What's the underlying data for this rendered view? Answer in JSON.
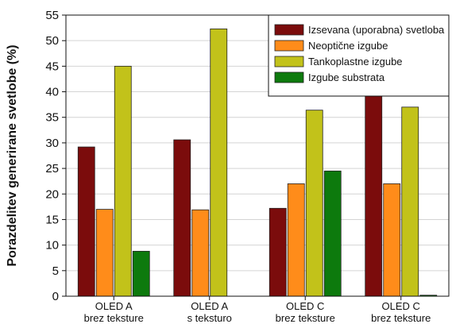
{
  "chart_data": {
    "type": "bar",
    "ylabel": "Porazdelitev generirane svetlobe (%)",
    "xlabel": "",
    "ylim": [
      0,
      55
    ],
    "yticks": [
      0,
      5,
      10,
      15,
      20,
      25,
      30,
      35,
      40,
      45,
      50,
      55
    ],
    "grid": "horizontal",
    "legend_position": "top-right",
    "categories": [
      [
        "OLED A",
        "brez teksture"
      ],
      [
        "OLED A",
        "s teksturo"
      ],
      [
        "OLED C",
        "brez teksture"
      ],
      [
        "OLED C",
        "brez teksture"
      ]
    ],
    "series": [
      {
        "name": "Izsevana (uporabna) svetloba",
        "color": "#7b0c0c",
        "values": [
          29.2,
          30.6,
          17.2,
          40.8
        ]
      },
      {
        "name": "Neoptične izgube",
        "color": "#ff8c1a",
        "values": [
          17.0,
          16.9,
          22.0,
          22.0
        ]
      },
      {
        "name": "Tankoplastne izgube",
        "color": "#c2c21a",
        "values": [
          45.0,
          52.3,
          36.4,
          37.0
        ]
      },
      {
        "name": "Izgube substrata",
        "color": "#0d7a0d",
        "values": [
          8.8,
          0.0,
          24.5,
          0.2
        ]
      }
    ]
  }
}
